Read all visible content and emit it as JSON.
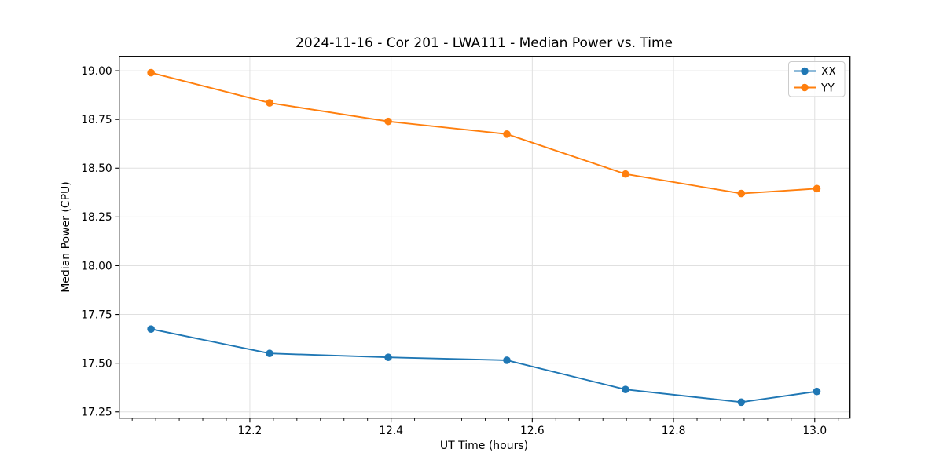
{
  "figure": {
    "title": "2024-11-16 - Cor 201 - LWA111 - Median Power vs. Time",
    "xlabel": "UT Time (hours)",
    "ylabel": "Median Power (CPU)"
  },
  "chart_data": {
    "type": "line",
    "title": "2024-11-16 - Cor 201 - LWA111 - Median Power vs. Time",
    "xlabel": "UT Time (hours)",
    "ylabel": "Median Power (CPU)",
    "x": [
      12.06,
      12.228,
      12.396,
      12.564,
      12.732,
      12.896,
      13.003
    ],
    "series": [
      {
        "name": "XX",
        "color": "#1f77b4",
        "values": [
          17.675,
          17.55,
          17.53,
          17.515,
          17.365,
          17.3,
          17.355
        ]
      },
      {
        "name": "YY",
        "color": "#ff7f0e",
        "values": [
          18.99,
          18.835,
          18.74,
          18.675,
          18.47,
          18.37,
          18.395
        ]
      }
    ],
    "xlim": [
      12.015,
      13.05
    ],
    "ylim": [
      17.218,
      19.074
    ],
    "x_major_ticks": [
      12.2,
      12.4,
      12.6,
      12.8,
      13.0
    ],
    "x_tick_labels": [
      "12.2",
      "12.4",
      "12.6",
      "12.8",
      "13.0"
    ],
    "x_minor_divisions": 6,
    "y_major_ticks": [
      17.25,
      17.5,
      17.75,
      18.0,
      18.25,
      18.5,
      18.75,
      19.0
    ],
    "y_tick_labels": [
      "17.25",
      "17.50",
      "17.75",
      "18.00",
      "18.25",
      "18.50",
      "18.75",
      "19.00"
    ],
    "grid": true,
    "legend": {
      "position": "upper right",
      "labels": [
        "XX",
        "YY"
      ]
    }
  },
  "colors": {
    "series_xx": "#1f77b4",
    "series_yy": "#ff7f0e",
    "grid": "#e0e0e0",
    "spine": "#000000",
    "legend_border": "#cccccc",
    "legend_background": "#ffffff"
  }
}
